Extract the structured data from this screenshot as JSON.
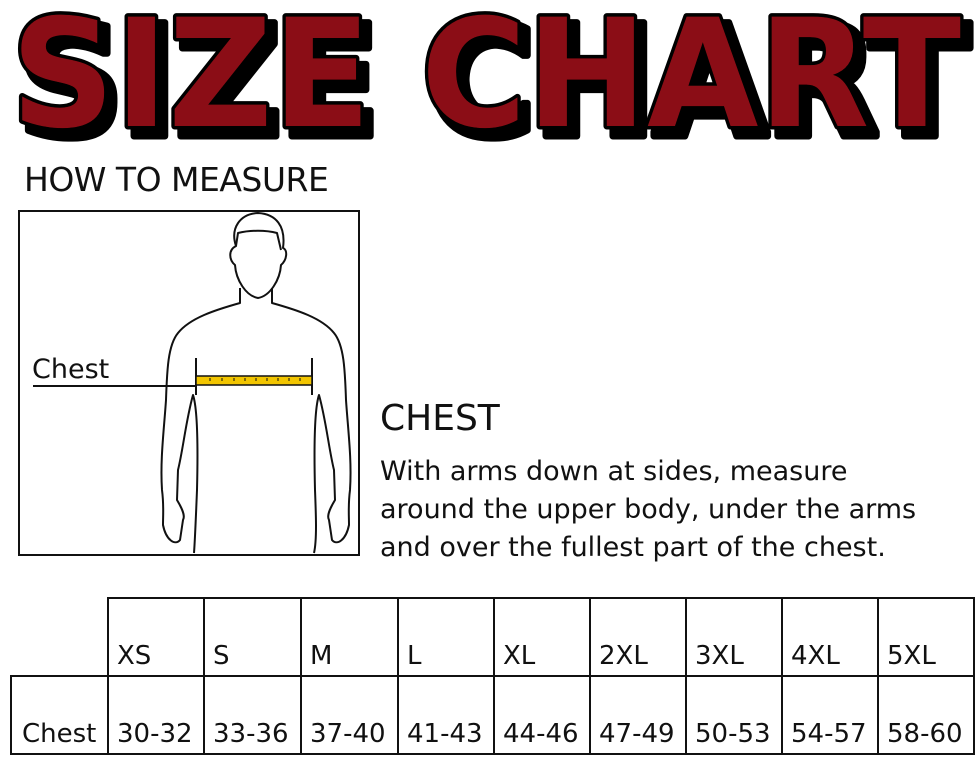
{
  "title": "SIZE CHART",
  "colors": {
    "title_fill": "#8b1014",
    "title_outline": "#000000",
    "tape": "#f2c500"
  },
  "how_to_measure": "HOW TO MEASURE",
  "figure": {
    "chest_label": "Chest"
  },
  "instruction": {
    "heading": "CHEST",
    "lines": [
      "With arms down at sides, measure",
      "around the upper body, under the arms",
      "and over the fullest part of the chest."
    ]
  },
  "size_table": {
    "sizes": [
      "XS",
      "S",
      "M",
      "L",
      "XL",
      "2XL",
      "3XL",
      "4XL",
      "5XL"
    ],
    "rows": [
      {
        "label": "Chest",
        "values": [
          "30-32",
          "33-36",
          "37-40",
          "41-43",
          "44-46",
          "47-49",
          "50-53",
          "54-57",
          "58-60"
        ]
      }
    ]
  }
}
